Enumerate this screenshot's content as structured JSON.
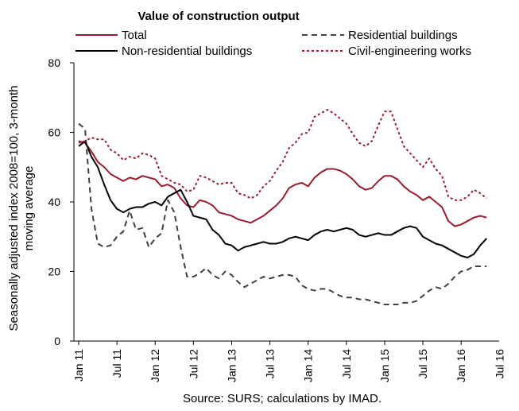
{
  "chart_data": {
    "type": "line",
    "title": "Value of construction output",
    "ylabel_line1": "Seasonally adjusted index 2008=100, 3-month",
    "ylabel_line2": "moving average",
    "source": "Source: SURS; calculations by IMAD.",
    "ylim": [
      0,
      80
    ],
    "yticks": [
      0,
      20,
      40,
      60,
      80
    ],
    "x_start": "2011-01",
    "x_end": "2016-09",
    "xticks": [
      "Jan 11",
      "Jul 11",
      "Jan 12",
      "Jul 12",
      "Jan 13",
      "Jul 13",
      "Jan 14",
      "Jul 14",
      "Jan 15",
      "Jul 15",
      "Jan 16",
      "Jul 16"
    ],
    "grid": false,
    "legend": "top, two columns",
    "series": [
      {
        "name": "Total",
        "color": "#9b1c2e",
        "style": "solid",
        "values": [
          57.5,
          57.0,
          54.5,
          51.5,
          50.0,
          48.0,
          47.0,
          46.0,
          47.0,
          46.5,
          47.5,
          47.0,
          46.5,
          44.5,
          45.0,
          44.0,
          41.0,
          39.0,
          38.5,
          40.5,
          40.0,
          39.0,
          37.0,
          36.5,
          36.0,
          35.0,
          34.5,
          34.0,
          35.0,
          36.0,
          37.5,
          39.0,
          41.0,
          44.0,
          45.0,
          45.5,
          44.5,
          47.0,
          48.5,
          49.5,
          49.5,
          49.0,
          48.0,
          46.5,
          44.5,
          43.5,
          44.0,
          46.0,
          47.5,
          47.5,
          46.5,
          44.5,
          43.0,
          42.0,
          40.5,
          41.5,
          40.0,
          38.5,
          34.5,
          33.0,
          33.5,
          34.5,
          35.5,
          36.0,
          35.5
        ]
      },
      {
        "name": "Residential buildings",
        "color": "#404040",
        "style": "dashed",
        "values": [
          62.5,
          61.0,
          38.0,
          28.0,
          27.0,
          27.5,
          30.0,
          31.5,
          37.5,
          32.0,
          32.5,
          27.0,
          29.5,
          31.0,
          40.5,
          37.0,
          27.0,
          18.5,
          18.5,
          19.5,
          21.0,
          19.0,
          18.0,
          20.0,
          19.0,
          17.0,
          15.5,
          16.5,
          17.5,
          18.5,
          18.0,
          18.5,
          19.0,
          19.0,
          18.5,
          16.0,
          15.0,
          14.5,
          15.0,
          15.0,
          14.0,
          13.0,
          12.5,
          12.5,
          12.0,
          12.0,
          11.5,
          11.0,
          10.5,
          10.5,
          10.5,
          11.0,
          11.0,
          11.5,
          13.0,
          14.5,
          15.5,
          15.0,
          16.5,
          18.5,
          20.0,
          20.5,
          21.5,
          21.5,
          21.5
        ]
      },
      {
        "name": "Non-residential buildings",
        "color": "#000000",
        "style": "solid",
        "values": [
          56.0,
          57.5,
          53.0,
          50.0,
          45.0,
          40.5,
          38.0,
          37.0,
          38.0,
          38.5,
          38.5,
          39.5,
          40.0,
          39.0,
          41.5,
          42.5,
          43.5,
          40.0,
          36.0,
          35.5,
          35.0,
          32.0,
          30.5,
          28.0,
          27.5,
          26.0,
          27.0,
          27.5,
          28.0,
          28.5,
          28.0,
          28.0,
          28.5,
          29.5,
          30.0,
          29.5,
          29.0,
          30.5,
          31.5,
          32.0,
          31.5,
          32.0,
          32.5,
          32.0,
          30.5,
          30.0,
          30.5,
          31.0,
          30.5,
          30.5,
          31.5,
          32.5,
          33.0,
          32.5,
          30.0,
          29.0,
          28.0,
          27.5,
          26.5,
          25.5,
          24.5,
          24.0,
          25.0,
          27.5,
          29.5
        ]
      },
      {
        "name": "Civil-engineering works",
        "color": "#9b1c2e",
        "style": "dotted",
        "values": [
          57.0,
          57.5,
          58.5,
          58.0,
          58.0,
          55.0,
          54.0,
          52.0,
          53.0,
          52.5,
          54.0,
          53.5,
          52.5,
          47.5,
          46.5,
          45.5,
          45.0,
          43.0,
          43.5,
          47.5,
          47.0,
          46.0,
          45.0,
          45.5,
          45.5,
          42.5,
          42.0,
          41.0,
          42.0,
          44.5,
          46.0,
          49.0,
          51.5,
          55.5,
          57.0,
          59.5,
          60.0,
          64.5,
          65.5,
          66.5,
          65.5,
          64.0,
          62.5,
          59.5,
          57.0,
          56.0,
          57.5,
          62.0,
          66.0,
          66.0,
          61.0,
          56.0,
          54.0,
          52.0,
          50.0,
          52.5,
          49.5,
          47.5,
          41.5,
          40.5,
          40.5,
          41.5,
          43.5,
          42.5,
          41.0
        ]
      }
    ]
  }
}
